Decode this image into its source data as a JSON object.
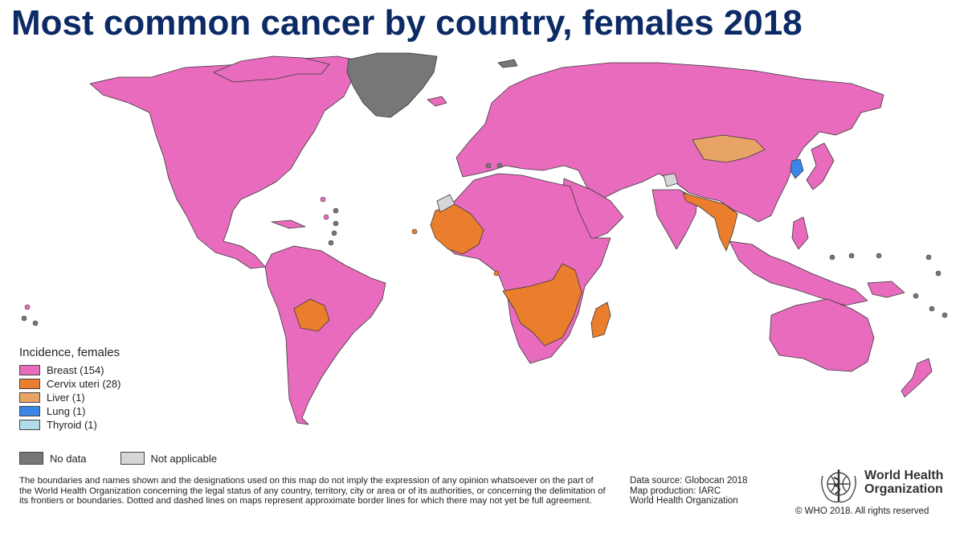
{
  "title": "Most common cancer by country, females 2018",
  "legend": {
    "title": "Incidence, females",
    "items": [
      {
        "label": "Breast (154)",
        "color": "#e86bbd"
      },
      {
        "label": "Cervix uteri (28)",
        "color": "#ea7e2c"
      },
      {
        "label": "Liver (1)",
        "color": "#e8a466"
      },
      {
        "label": "Lung (1)",
        "color": "#3a86e8"
      },
      {
        "label": "Thyroid (1)",
        "color": "#b3dbe8"
      }
    ],
    "no_data": {
      "label": "No data",
      "color": "#777777"
    },
    "not_applicable": {
      "label": "Not applicable",
      "color": "#d6d6d6"
    }
  },
  "disclaimer": "The boundaries and names shown and the designations used on this map do not imply the expression of any opinion whatsoever on the part of the World Health Organization concerning the legal status of any country, territory, city or area or of its authorities, or concerning the delimitation of its frontiers or boundaries. Dotted and dashed lines on maps represent approximate border lines for which there may not yet be full agreement.",
  "source": {
    "line1": "Data source: Globocan 2018",
    "line2": "Map production: IARC",
    "line3": "World Health Organization"
  },
  "logo": {
    "line1": "World Health",
    "line2": "Organization"
  },
  "copyright": "© WHO 2018. All rights reserved"
}
